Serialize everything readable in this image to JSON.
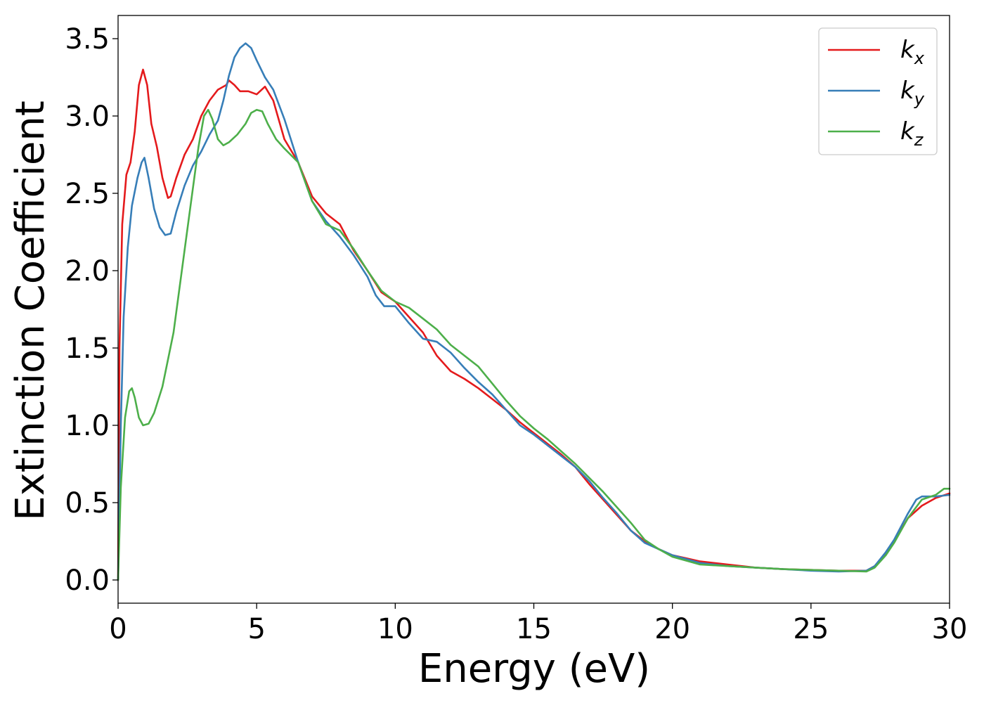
{
  "chart_data": {
    "type": "line",
    "title": "",
    "xlabel": "Energy (eV)",
    "ylabel": "Extinction Coefficient",
    "xlim": [
      0,
      30
    ],
    "ylim": [
      -0.15,
      3.65
    ],
    "xticks": [
      0,
      5,
      10,
      15,
      20,
      25,
      30
    ],
    "xtick_labels": [
      "0",
      "5",
      "10",
      "15",
      "20",
      "25",
      "30"
    ],
    "yticks": [
      0.0,
      0.5,
      1.0,
      1.5,
      2.0,
      2.5,
      3.0,
      3.5
    ],
    "ytick_labels": [
      "0.0",
      "0.5",
      "1.0",
      "1.5",
      "2.0",
      "2.5",
      "3.0",
      "3.5"
    ],
    "grid": false,
    "legend_position": "top-right",
    "series": [
      {
        "name": "k",
        "subscript": "x",
        "color": "#e41a1c",
        "points": [
          [
            0,
            0.0
          ],
          [
            0.05,
            1.5
          ],
          [
            0.15,
            2.3
          ],
          [
            0.3,
            2.62
          ],
          [
            0.45,
            2.7
          ],
          [
            0.6,
            2.9
          ],
          [
            0.75,
            3.2
          ],
          [
            0.9,
            3.3
          ],
          [
            1.05,
            3.2
          ],
          [
            1.2,
            2.95
          ],
          [
            1.4,
            2.8
          ],
          [
            1.6,
            2.6
          ],
          [
            1.8,
            2.47
          ],
          [
            1.9,
            2.48
          ],
          [
            2.1,
            2.6
          ],
          [
            2.4,
            2.75
          ],
          [
            2.7,
            2.85
          ],
          [
            3.0,
            3.0
          ],
          [
            3.3,
            3.1
          ],
          [
            3.6,
            3.17
          ],
          [
            3.9,
            3.2
          ],
          [
            4.0,
            3.23
          ],
          [
            4.2,
            3.2
          ],
          [
            4.4,
            3.16
          ],
          [
            4.7,
            3.16
          ],
          [
            5.0,
            3.14
          ],
          [
            5.3,
            3.19
          ],
          [
            5.6,
            3.1
          ],
          [
            6.0,
            2.85
          ],
          [
            6.5,
            2.7
          ],
          [
            7.0,
            2.48
          ],
          [
            7.5,
            2.37
          ],
          [
            8.0,
            2.3
          ],
          [
            8.5,
            2.13
          ],
          [
            9.0,
            2.0
          ],
          [
            9.5,
            1.86
          ],
          [
            10.0,
            1.8
          ],
          [
            10.5,
            1.7
          ],
          [
            11.0,
            1.6
          ],
          [
            11.5,
            1.45
          ],
          [
            12.0,
            1.35
          ],
          [
            12.5,
            1.3
          ],
          [
            13.0,
            1.24
          ],
          [
            13.5,
            1.17
          ],
          [
            14.0,
            1.1
          ],
          [
            14.5,
            1.02
          ],
          [
            15.0,
            0.95
          ],
          [
            15.5,
            0.88
          ],
          [
            16.0,
            0.81
          ],
          [
            16.5,
            0.73
          ],
          [
            17.0,
            0.62
          ],
          [
            17.5,
            0.52
          ],
          [
            18.0,
            0.42
          ],
          [
            18.5,
            0.32
          ],
          [
            19.0,
            0.25
          ],
          [
            19.5,
            0.2
          ],
          [
            20.0,
            0.16
          ],
          [
            20.5,
            0.14
          ],
          [
            21.0,
            0.12
          ],
          [
            22.0,
            0.1
          ],
          [
            23.0,
            0.08
          ],
          [
            24.0,
            0.07
          ],
          [
            25.0,
            0.065
          ],
          [
            26.0,
            0.06
          ],
          [
            27.0,
            0.06
          ],
          [
            27.3,
            0.09
          ],
          [
            27.7,
            0.17
          ],
          [
            28.0,
            0.25
          ],
          [
            28.5,
            0.4
          ],
          [
            29.0,
            0.48
          ],
          [
            29.5,
            0.53
          ],
          [
            30.0,
            0.56
          ]
        ]
      },
      {
        "name": "k",
        "subscript": "y",
        "color": "#377eb8",
        "points": [
          [
            0,
            0.0
          ],
          [
            0.1,
            1.0
          ],
          [
            0.2,
            1.7
          ],
          [
            0.35,
            2.15
          ],
          [
            0.5,
            2.42
          ],
          [
            0.7,
            2.6
          ],
          [
            0.85,
            2.7
          ],
          [
            0.95,
            2.73
          ],
          [
            1.1,
            2.6
          ],
          [
            1.3,
            2.4
          ],
          [
            1.5,
            2.28
          ],
          [
            1.7,
            2.23
          ],
          [
            1.9,
            2.24
          ],
          [
            2.1,
            2.38
          ],
          [
            2.4,
            2.55
          ],
          [
            2.7,
            2.68
          ],
          [
            3.0,
            2.77
          ],
          [
            3.3,
            2.88
          ],
          [
            3.6,
            2.97
          ],
          [
            3.8,
            3.1
          ],
          [
            4.0,
            3.26
          ],
          [
            4.2,
            3.38
          ],
          [
            4.4,
            3.44
          ],
          [
            4.6,
            3.47
          ],
          [
            4.8,
            3.44
          ],
          [
            5.0,
            3.36
          ],
          [
            5.3,
            3.25
          ],
          [
            5.6,
            3.17
          ],
          [
            6.0,
            2.98
          ],
          [
            6.5,
            2.7
          ],
          [
            7.0,
            2.45
          ],
          [
            7.5,
            2.32
          ],
          [
            8.0,
            2.22
          ],
          [
            8.5,
            2.1
          ],
          [
            9.0,
            1.96
          ],
          [
            9.3,
            1.84
          ],
          [
            9.6,
            1.77
          ],
          [
            10.0,
            1.77
          ],
          [
            10.5,
            1.66
          ],
          [
            11.0,
            1.56
          ],
          [
            11.5,
            1.54
          ],
          [
            12.0,
            1.47
          ],
          [
            12.5,
            1.37
          ],
          [
            13.0,
            1.28
          ],
          [
            13.5,
            1.2
          ],
          [
            14.0,
            1.1
          ],
          [
            14.5,
            1.0
          ],
          [
            15.0,
            0.94
          ],
          [
            15.5,
            0.87
          ],
          [
            16.0,
            0.8
          ],
          [
            16.5,
            0.73
          ],
          [
            17.0,
            0.64
          ],
          [
            17.5,
            0.53
          ],
          [
            18.0,
            0.43
          ],
          [
            18.5,
            0.32
          ],
          [
            19.0,
            0.24
          ],
          [
            19.5,
            0.2
          ],
          [
            20.0,
            0.16
          ],
          [
            21.0,
            0.11
          ],
          [
            22.0,
            0.09
          ],
          [
            23.0,
            0.08
          ],
          [
            24.0,
            0.07
          ],
          [
            25.0,
            0.06
          ],
          [
            26.0,
            0.055
          ],
          [
            27.0,
            0.06
          ],
          [
            27.3,
            0.09
          ],
          [
            27.7,
            0.18
          ],
          [
            28.0,
            0.26
          ],
          [
            28.5,
            0.43
          ],
          [
            28.8,
            0.52
          ],
          [
            29.0,
            0.54
          ],
          [
            29.5,
            0.54
          ],
          [
            30.0,
            0.55
          ]
        ]
      },
      {
        "name": "k",
        "subscript": "z",
        "color": "#4daf4a",
        "points": [
          [
            0,
            0.0
          ],
          [
            0.1,
            0.6
          ],
          [
            0.25,
            1.05
          ],
          [
            0.4,
            1.22
          ],
          [
            0.5,
            1.24
          ],
          [
            0.6,
            1.18
          ],
          [
            0.75,
            1.05
          ],
          [
            0.9,
            1.0
          ],
          [
            1.1,
            1.01
          ],
          [
            1.3,
            1.08
          ],
          [
            1.6,
            1.25
          ],
          [
            2.0,
            1.6
          ],
          [
            2.3,
            2.0
          ],
          [
            2.6,
            2.4
          ],
          [
            2.9,
            2.8
          ],
          [
            3.1,
            3.0
          ],
          [
            3.25,
            3.04
          ],
          [
            3.4,
            2.98
          ],
          [
            3.6,
            2.85
          ],
          [
            3.8,
            2.81
          ],
          [
            4.0,
            2.83
          ],
          [
            4.3,
            2.88
          ],
          [
            4.6,
            2.95
          ],
          [
            4.8,
            3.02
          ],
          [
            5.0,
            3.04
          ],
          [
            5.2,
            3.03
          ],
          [
            5.4,
            2.95
          ],
          [
            5.7,
            2.85
          ],
          [
            6.0,
            2.79
          ],
          [
            6.5,
            2.7
          ],
          [
            7.0,
            2.45
          ],
          [
            7.5,
            2.3
          ],
          [
            8.0,
            2.26
          ],
          [
            8.5,
            2.14
          ],
          [
            9.0,
            2.0
          ],
          [
            9.5,
            1.87
          ],
          [
            10.0,
            1.8
          ],
          [
            10.5,
            1.76
          ],
          [
            11.0,
            1.69
          ],
          [
            11.5,
            1.62
          ],
          [
            12.0,
            1.52
          ],
          [
            12.5,
            1.45
          ],
          [
            13.0,
            1.38
          ],
          [
            13.5,
            1.27
          ],
          [
            14.0,
            1.16
          ],
          [
            14.5,
            1.06
          ],
          [
            15.0,
            0.98
          ],
          [
            15.5,
            0.91
          ],
          [
            16.0,
            0.83
          ],
          [
            16.5,
            0.75
          ],
          [
            17.0,
            0.66
          ],
          [
            17.5,
            0.57
          ],
          [
            18.0,
            0.47
          ],
          [
            18.5,
            0.37
          ],
          [
            19.0,
            0.26
          ],
          [
            19.5,
            0.2
          ],
          [
            20.0,
            0.15
          ],
          [
            21.0,
            0.1
          ],
          [
            22.0,
            0.09
          ],
          [
            23.0,
            0.08
          ],
          [
            24.0,
            0.07
          ],
          [
            25.0,
            0.065
          ],
          [
            26.0,
            0.06
          ],
          [
            27.0,
            0.055
          ],
          [
            27.3,
            0.08
          ],
          [
            27.7,
            0.16
          ],
          [
            28.0,
            0.24
          ],
          [
            28.5,
            0.4
          ],
          [
            29.0,
            0.52
          ],
          [
            29.5,
            0.55
          ],
          [
            29.8,
            0.59
          ],
          [
            30.0,
            0.59
          ]
        ]
      }
    ]
  }
}
